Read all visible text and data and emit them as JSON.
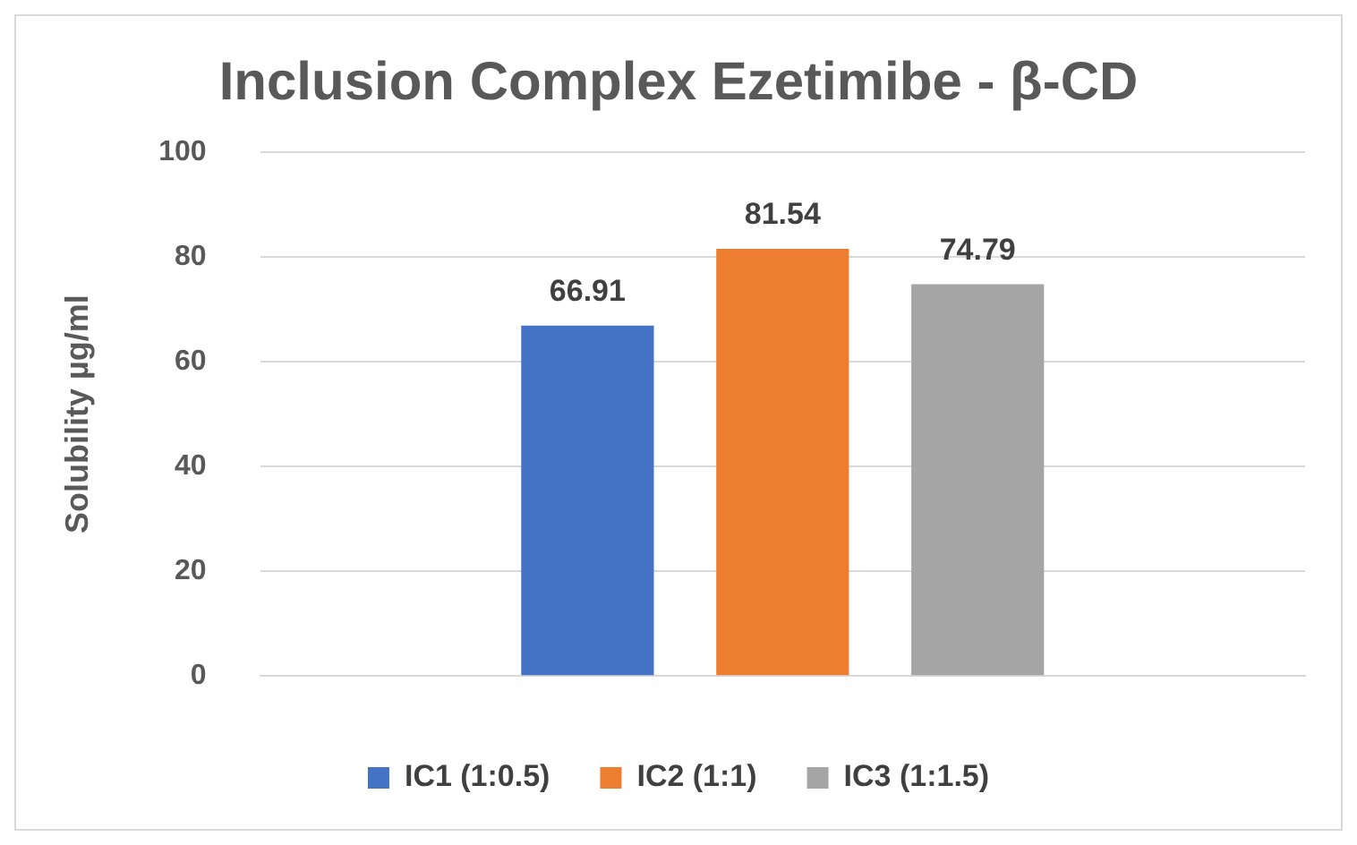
{
  "chart_data": {
    "type": "bar",
    "title": "Inclusion Complex Ezetimibe - β-CD",
    "ylabel": "Solubility µg/ml",
    "categories": [
      null
    ],
    "series": [
      {
        "name": "IC1 (1:0.5)",
        "color": "#4472c4",
        "values": [
          66.91
        ]
      },
      {
        "name": "IC2 (1:1)",
        "color": "#ed7d31",
        "values": [
          81.54
        ]
      },
      {
        "name": "IC3 (1:1.5)",
        "color": "#a5a5a5",
        "values": [
          74.79
        ]
      }
    ],
    "ylim": [
      0,
      100
    ],
    "yticks": [
      0,
      20,
      40,
      60,
      80,
      100
    ],
    "grid": "y",
    "legend": "bottom",
    "data_labels": true
  }
}
